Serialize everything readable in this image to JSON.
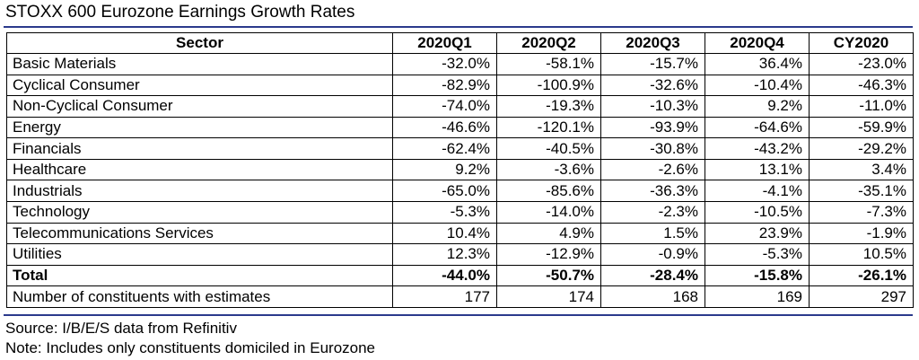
{
  "title": "STOXX 600 Eurozone Earnings Growth Rates",
  "headers": [
    "Sector",
    "2020Q1",
    "2020Q2",
    "2020Q3",
    "2020Q4",
    "CY2020"
  ],
  "rows": [
    {
      "sector": "Basic Materials",
      "values": [
        "-32.0%",
        "-58.1%",
        "-15.7%",
        "36.4%",
        "-23.0%"
      ]
    },
    {
      "sector": "Cyclical Consumer",
      "values": [
        "-82.9%",
        "-100.9%",
        "-32.6%",
        "-10.4%",
        "-46.3%"
      ]
    },
    {
      "sector": "Non-Cyclical Consumer",
      "values": [
        "-74.0%",
        "-19.3%",
        "-10.3%",
        "9.2%",
        "-11.0%"
      ]
    },
    {
      "sector": "Energy",
      "values": [
        "-46.6%",
        "-120.1%",
        "-93.9%",
        "-64.6%",
        "-59.9%"
      ]
    },
    {
      "sector": "Financials",
      "values": [
        "-62.4%",
        "-40.5%",
        "-30.8%",
        "-43.2%",
        "-29.2%"
      ]
    },
    {
      "sector": "Healthcare",
      "values": [
        "9.2%",
        "-3.6%",
        "-2.6%",
        "13.1%",
        "3.4%"
      ]
    },
    {
      "sector": "Industrials",
      "values": [
        "-65.0%",
        "-85.6%",
        "-36.3%",
        "-4.1%",
        "-35.1%"
      ]
    },
    {
      "sector": "Technology",
      "values": [
        "-5.3%",
        "-14.0%",
        "-2.3%",
        "-10.5%",
        "-7.3%"
      ]
    },
    {
      "sector": "Telecommunications Services",
      "values": [
        "10.4%",
        "4.9%",
        "1.5%",
        "23.9%",
        "-1.9%"
      ]
    },
    {
      "sector": "Utilities",
      "values": [
        "12.3%",
        "-12.9%",
        "-0.9%",
        "-5.3%",
        "10.5%"
      ]
    }
  ],
  "total": {
    "sector": "Total",
    "values": [
      "-44.0%",
      "-50.7%",
      "-28.4%",
      "-15.8%",
      "-26.1%"
    ]
  },
  "constituents": {
    "sector": "Number of constituents with estimates",
    "values": [
      "177",
      "174",
      "168",
      "169",
      "297"
    ]
  },
  "source": "Source: I/B/E/S data from Refinitiv",
  "note": "Note: Includes only constituents domiciled in Eurozone",
  "colors": {
    "rule": "#2b3a8c"
  }
}
